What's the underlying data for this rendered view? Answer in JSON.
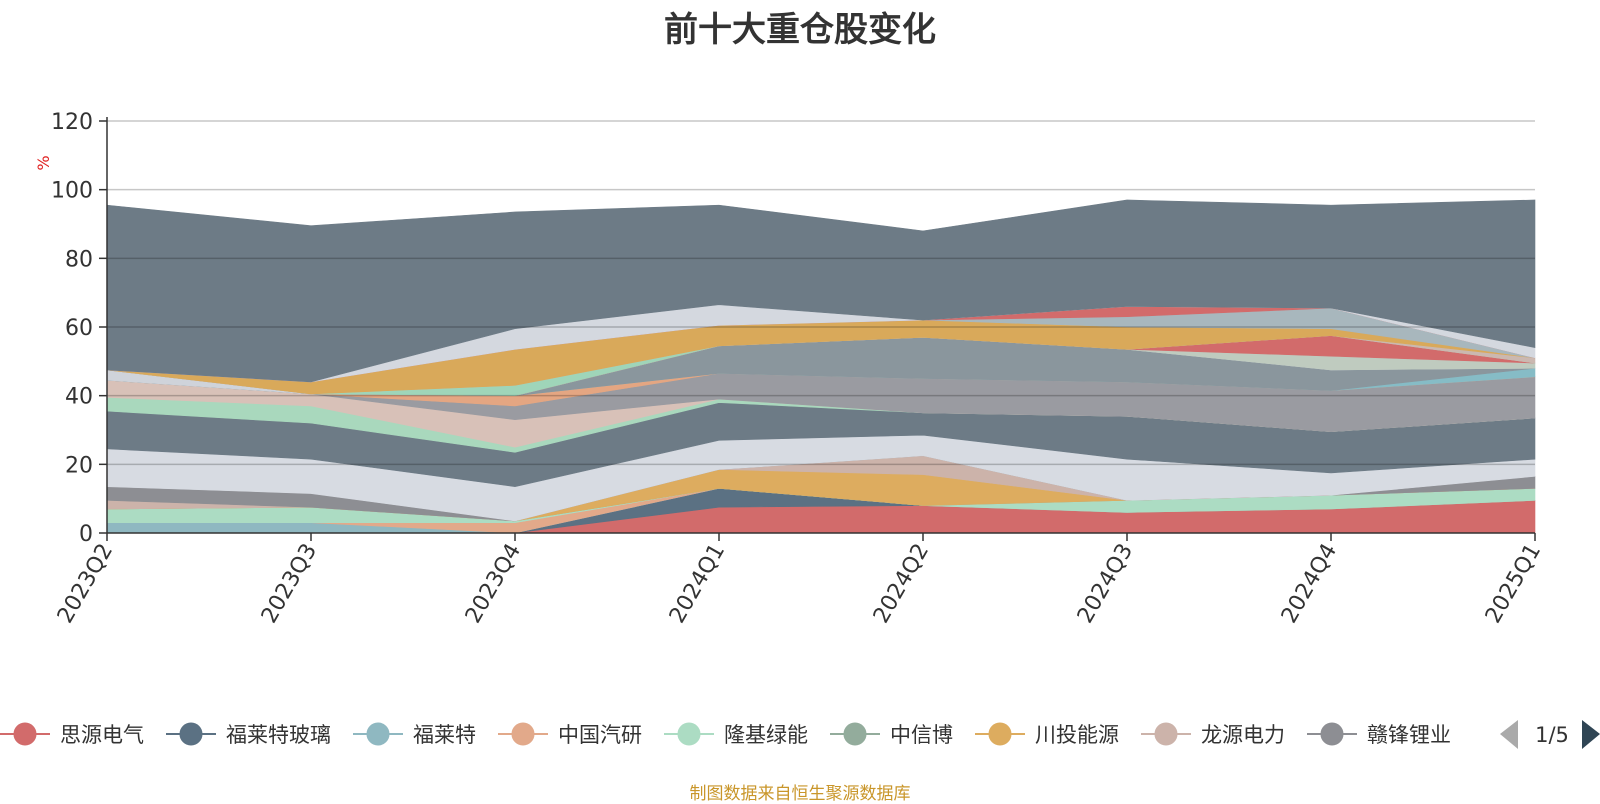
{
  "title": "前十大重仓股变化",
  "footer": "制图数据来自恒生聚源数据库",
  "legend_page": "1/5",
  "chart_data": {
    "type": "area",
    "title": "前十大重仓股变化",
    "ylabel": "%",
    "xlabel": "",
    "ylim": [
      0,
      120
    ],
    "y_ticks": [
      0,
      20,
      40,
      60,
      80,
      100,
      120
    ],
    "grid": true,
    "stacked": true,
    "legend_position": "bottom",
    "categories": [
      "2023Q2",
      "2023Q3",
      "2023Q4",
      "2024Q1",
      "2024Q2",
      "2024Q3",
      "2024Q4",
      "2025Q1"
    ],
    "series": [
      {
        "name": "思源电气",
        "color": "#d26b6b",
        "values": [
          0,
          0,
          0,
          7.5,
          8,
          6,
          7,
          9.5
        ]
      },
      {
        "name": "福莱特玻璃",
        "color": "#5b7183",
        "values": [
          0,
          0,
          0,
          5.5,
          0,
          0,
          0,
          0
        ]
      },
      {
        "name": "福莱特",
        "color": "#8fb8c1",
        "values": [
          3,
          3,
          0,
          0,
          0,
          0,
          0,
          0
        ]
      },
      {
        "name": "中国汽研",
        "color": "#e2a98a",
        "values": [
          0,
          0,
          3,
          0,
          0,
          0,
          0,
          0
        ]
      },
      {
        "name": "隆基绿能",
        "color": "#acdcc3",
        "values": [
          4,
          4.5,
          0.5,
          0,
          0,
          3.5,
          4,
          3.5
        ]
      },
      {
        "name": "中信博",
        "color": "#93ac9c",
        "values": [
          0,
          0,
          0,
          0,
          0,
          0,
          0,
          0
        ]
      },
      {
        "name": "川投能源",
        "color": "#ddac5f",
        "values": [
          0,
          0,
          0,
          5.5,
          9,
          0,
          0,
          0
        ]
      },
      {
        "name": "龙源电力",
        "color": "#ccb3aa",
        "values": [
          2.5,
          0,
          0,
          0,
          5.5,
          0,
          0,
          0
        ]
      },
      {
        "name": "赣锋锂业",
        "color": "#8d8e93",
        "values": [
          4,
          4,
          0,
          0,
          0,
          0,
          0,
          3.5
        ]
      },
      {
        "name": "",
        "color": "#d7dbe2",
        "values": [
          11,
          10,
          10,
          8.5,
          6,
          12,
          6.5,
          5
        ]
      },
      {
        "name": "",
        "color": "#6d7b86",
        "values": [
          11,
          10.5,
          10,
          11,
          6.5,
          12.5,
          12,
          12
        ]
      },
      {
        "name": "",
        "color": "#a9d8bd",
        "values": [
          4,
          5,
          1.5,
          1,
          0,
          0,
          0,
          0
        ]
      },
      {
        "name": "",
        "color": "#d8c1b8",
        "values": [
          5,
          3.5,
          8,
          0,
          0,
          0,
          0,
          0
        ]
      },
      {
        "name": "",
        "color": "#9a9ba1",
        "values": [
          0,
          0,
          4,
          7.5,
          10,
          10,
          12,
          12
        ]
      },
      {
        "name": "",
        "color": "#e4a682",
        "values": [
          0,
          0,
          3,
          0,
          0,
          0,
          0,
          0
        ]
      },
      {
        "name": "",
        "color": "#86bcc6",
        "values": [
          0,
          0,
          0,
          0,
          0,
          0,
          0,
          2.5
        ]
      },
      {
        "name": "",
        "color": "#8a969d",
        "values": [
          0,
          0,
          0,
          8,
          12,
          9.5,
          6,
          0
        ]
      },
      {
        "name": "",
        "color": "#cfd3da",
        "values": [
          3,
          0,
          0,
          0,
          0,
          0,
          0,
          0
        ]
      },
      {
        "name": "",
        "color": "#bfcbbf",
        "values": [
          0,
          0,
          0,
          0,
          0,
          0,
          4,
          1.5
        ]
      },
      {
        "name": "",
        "color": "#d26b6b",
        "values": [
          0,
          0,
          0,
          0,
          0,
          0,
          6,
          0
        ]
      },
      {
        "name": "",
        "color": "#9fd5b9",
        "values": [
          0,
          0,
          3,
          0,
          0,
          0,
          0,
          0
        ]
      },
      {
        "name": "",
        "color": "#cbb8b0",
        "values": [
          0,
          0,
          0,
          0,
          0,
          0,
          0,
          1.5
        ]
      },
      {
        "name": "",
        "color": "#d9a95a",
        "values": [
          0,
          3.5,
          10.5,
          6,
          5,
          6.5,
          2,
          0
        ]
      },
      {
        "name": "",
        "color": "#a8b7bd",
        "values": [
          0,
          0,
          0,
          0,
          0,
          3,
          6,
          0
        ]
      },
      {
        "name": "",
        "color": "#d26b6b",
        "values": [
          0,
          0,
          0,
          0,
          0,
          3,
          0,
          0
        ]
      },
      {
        "name": "",
        "color": "#d4d8df",
        "values": [
          0,
          0,
          6,
          6,
          0,
          0,
          0,
          3
        ]
      },
      {
        "name": "",
        "color": "#6d7b86",
        "values": [
          48,
          45.5,
          34,
          29,
          26,
          31,
          30,
          43
        ]
      }
    ]
  }
}
